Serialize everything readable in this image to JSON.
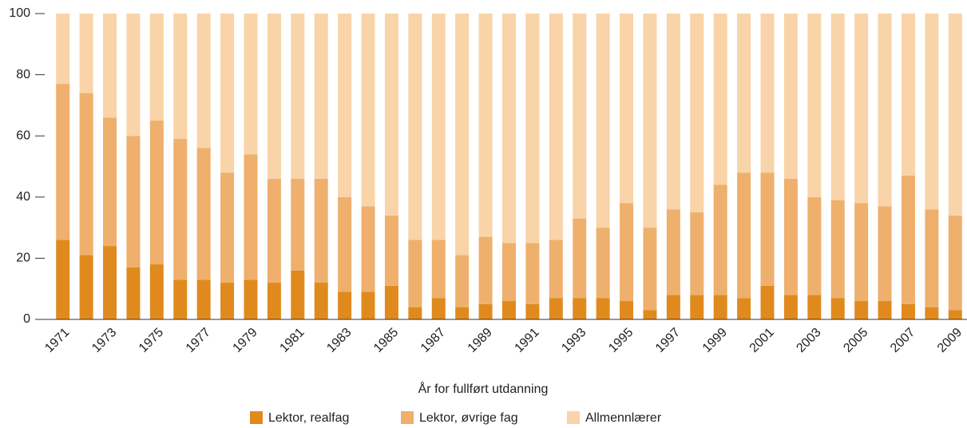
{
  "chart_data": {
    "type": "stacked_bar",
    "xlabel": "År for fullført utdanning",
    "categories": [
      "1971",
      null,
      "1973",
      null,
      "1975",
      null,
      "1977",
      null,
      "1979",
      null,
      "1981",
      null,
      "1983",
      null,
      "1985",
      null,
      "1987",
      null,
      "1989",
      null,
      "1991",
      null,
      "1993",
      null,
      "1995",
      null,
      "1997",
      null,
      "1999",
      null,
      "2001",
      null,
      "2003",
      null,
      "2005",
      null,
      "2007",
      null,
      "2009"
    ],
    "series": [
      {
        "name": "Lektor, realfag",
        "color": "#e08a1e",
        "values": [
          26,
          21,
          24,
          17,
          18,
          13,
          13,
          12,
          13,
          12,
          16,
          12,
          9,
          9,
          11,
          4,
          7,
          4,
          5,
          6,
          5,
          7,
          7,
          7,
          6,
          3,
          8,
          8,
          8,
          7,
          11,
          8,
          8,
          7,
          6,
          6,
          5,
          4,
          3
        ]
      },
      {
        "name": "Lektor, øvrige fag",
        "color": "#eeb06c",
        "values": [
          51,
          53,
          42,
          43,
          47,
          46,
          43,
          36,
          41,
          34,
          30,
          34,
          31,
          28,
          23,
          22,
          19,
          17,
          22,
          19,
          20,
          19,
          26,
          23,
          32,
          27,
          28,
          27,
          36,
          41,
          37,
          38,
          32,
          32,
          32,
          31,
          42,
          32,
          31
        ]
      },
      {
        "name": "Allmennlærer",
        "color": "#f8d4a8",
        "values": [
          23,
          26,
          34,
          40,
          35,
          41,
          44,
          52,
          46,
          54,
          54,
          54,
          60,
          63,
          66,
          74,
          74,
          79,
          73,
          75,
          75,
          74,
          67,
          70,
          62,
          70,
          64,
          65,
          56,
          52,
          52,
          54,
          60,
          61,
          62,
          63,
          53,
          64,
          66
        ]
      }
    ],
    "ylim": [
      0,
      100
    ],
    "yticks": [
      0,
      20,
      40,
      60,
      80,
      100
    ]
  }
}
